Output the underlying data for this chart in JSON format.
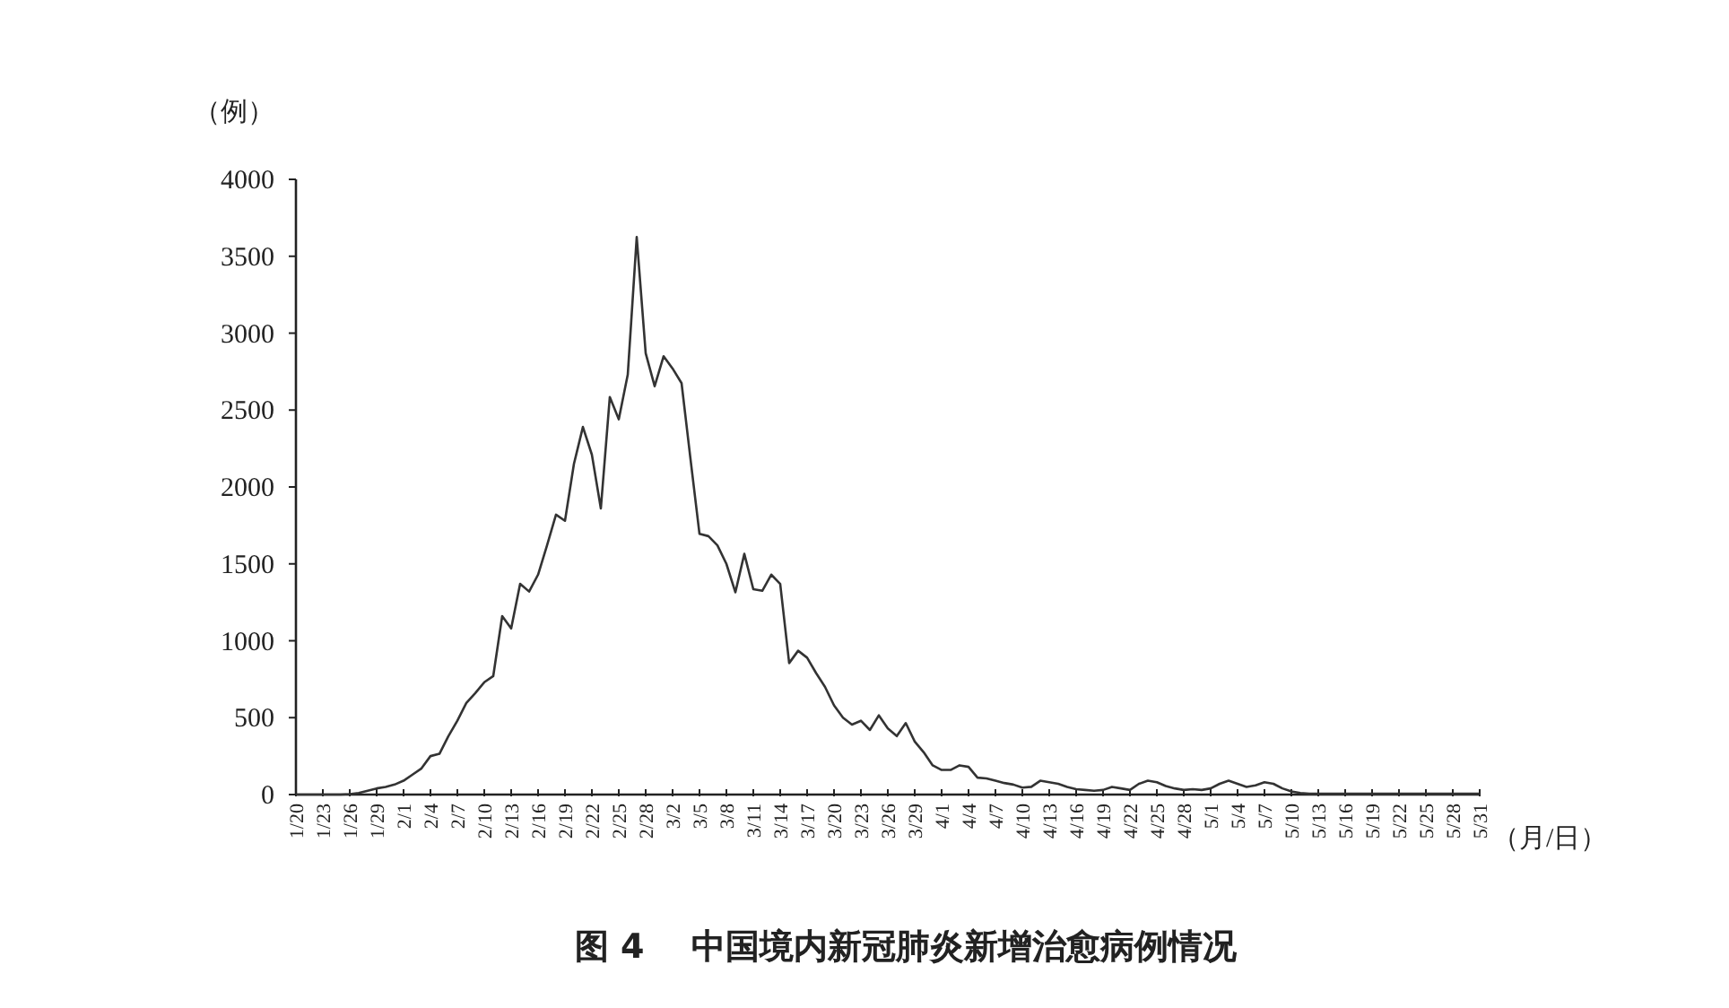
{
  "chart_data": {
    "type": "line",
    "title": "图 4    中国境内新冠肺炎新增治愈病例情况",
    "ylabel": "（例）",
    "xlabel": "（月/日）",
    "categories": [
      "1/20",
      null,
      null,
      "1/23",
      null,
      null,
      "1/26",
      null,
      null,
      "1/29",
      null,
      null,
      "2/1",
      null,
      null,
      "2/4",
      null,
      null,
      "2/7",
      null,
      null,
      "2/10",
      null,
      null,
      "2/13",
      null,
      null,
      "2/16",
      null,
      null,
      "2/19",
      null,
      null,
      "2/22",
      null,
      null,
      "2/25",
      null,
      null,
      "2/28",
      null,
      null,
      "3/2",
      null,
      null,
      "3/5",
      null,
      null,
      "3/8",
      null,
      null,
      "3/11",
      null,
      null,
      "3/14",
      null,
      null,
      "3/17",
      null,
      null,
      "3/20",
      null,
      null,
      "3/23",
      null,
      null,
      "3/26",
      null,
      null,
      "3/29",
      null,
      null,
      "4/1",
      null,
      null,
      "4/4",
      null,
      null,
      "4/7",
      null,
      null,
      "4/10",
      null,
      null,
      "4/13",
      null,
      null,
      "4/16",
      null,
      null,
      "4/19",
      null,
      null,
      "4/22",
      null,
      null,
      "4/25",
      null,
      null,
      "4/28",
      null,
      null,
      "5/1",
      null,
      null,
      "5/4",
      null,
      null,
      "5/7",
      null,
      null,
      "5/10",
      null,
      null,
      "5/13",
      null,
      null,
      "5/16",
      null,
      null,
      "5/19",
      null,
      null,
      "5/22",
      null,
      null,
      "5/25",
      null,
      null,
      "5/28",
      null,
      null,
      "5/31"
    ],
    "series": [
      {
        "color": "#333333",
        "values": [
          0,
          0,
          0,
          0,
          0,
          0,
          3,
          10,
          25,
          40,
          50,
          65,
          90,
          130,
          170,
          250,
          265,
          380,
          480,
          595,
          660,
          730,
          770,
          1160,
          1080,
          1370,
          1320,
          1430,
          1620,
          1820,
          1780,
          2150,
          2390,
          2210,
          1860,
          2585,
          2440,
          2730,
          3625,
          2870,
          2655,
          2850,
          2770,
          2675,
          2180,
          1695,
          1680,
          1620,
          1500,
          1315,
          1565,
          1335,
          1325,
          1430,
          1370,
          855,
          935,
          890,
          790,
          700,
          580,
          500,
          455,
          480,
          420,
          515,
          430,
          380,
          465,
          345,
          275,
          190,
          160,
          160,
          190,
          180,
          110,
          105,
          90,
          75,
          65,
          45,
          50,
          90,
          80,
          70,
          50,
          35,
          30,
          25,
          30,
          50,
          40,
          30,
          70,
          90,
          80,
          55,
          40,
          30,
          35,
          30,
          40,
          70,
          90,
          70,
          50,
          60,
          80,
          70,
          40,
          20,
          10,
          5,
          5,
          5,
          5,
          5,
          5,
          5,
          5,
          5,
          5,
          5,
          5,
          5,
          5,
          5,
          5,
          5,
          5,
          5,
          5
        ]
      }
    ],
    "ylim": [
      0,
      4000
    ],
    "yticks": [
      0,
      500,
      1000,
      1500,
      2000,
      2500,
      3000,
      3500,
      4000
    ],
    "line_style": "solid"
  }
}
